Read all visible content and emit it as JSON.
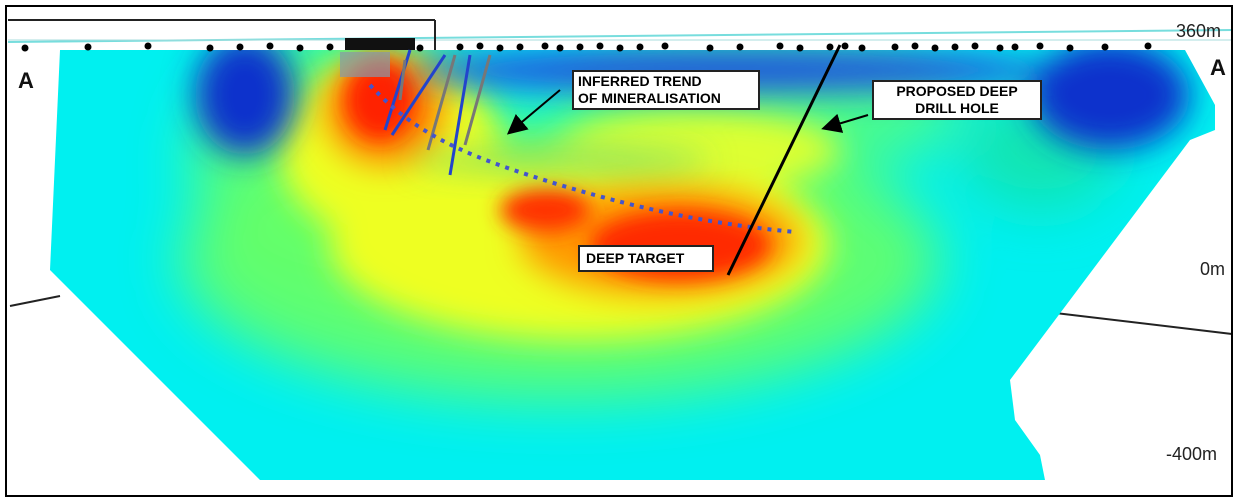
{
  "section": {
    "start_label": "A",
    "end_label": "A"
  },
  "elevations": {
    "top": "360m",
    "mid": "0m",
    "bottom": "-400m"
  },
  "annotations": {
    "trend_line1": "INFERRED TREND",
    "trend_line2": "OF MINERALISATION",
    "drill_line1": "PROPOSED DEEP",
    "drill_line2": "DRILL HOLE",
    "target": "DEEP TARGET"
  },
  "colors": {
    "background_low": "#00ffff",
    "moderate": "#33dd33",
    "elevated": "#ffff00",
    "high": "#ff2200",
    "very_low": "#1a3ccc",
    "trend_dots": "#4455cc",
    "drill_hole": "#000000",
    "drill_traces_blue": "#2244cc",
    "drill_traces_grey": "#777777"
  },
  "legend_icons": [
    "arrow-icon"
  ]
}
